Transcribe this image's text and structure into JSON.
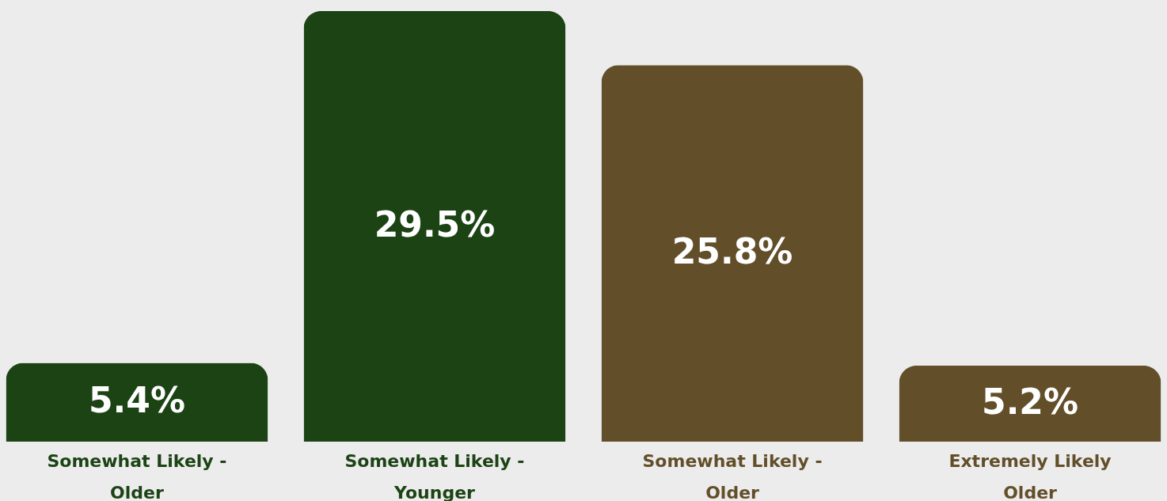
{
  "chart_data": {
    "type": "bar",
    "categories": [
      "Somewhat Likely - Older",
      "Somewhat Likely - Younger",
      "Somewhat Likely - Older",
      "Extremely Likely Older"
    ],
    "values": [
      5.4,
      29.5,
      25.8,
      5.2
    ],
    "value_labels": [
      "5.4%",
      "29.5%",
      "25.8%",
      "5.2%"
    ],
    "colors": [
      "#1b4314",
      "#1b4314",
      "#624f2a",
      "#624f2a"
    ]
  }
}
